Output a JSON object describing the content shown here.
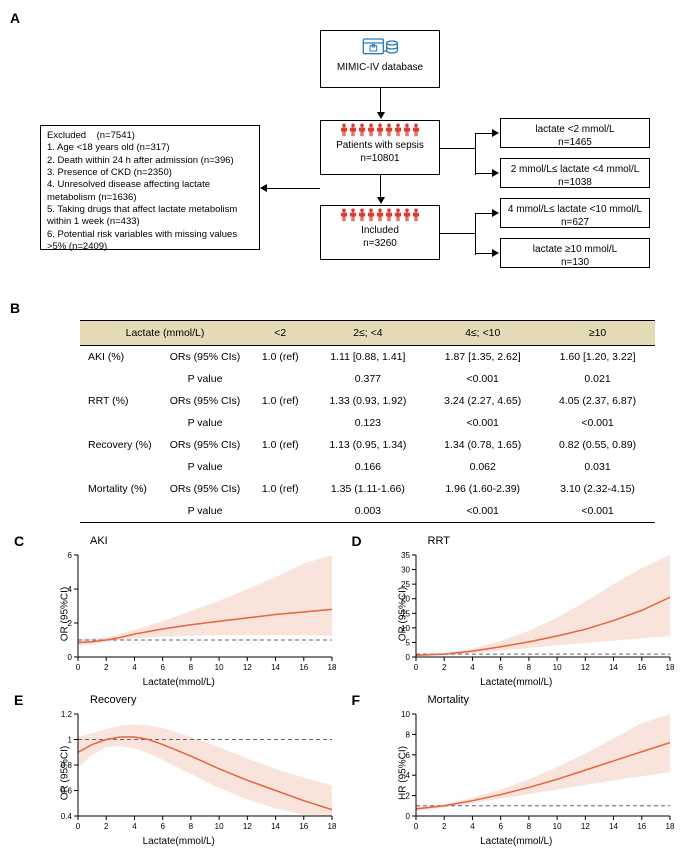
{
  "panelA": {
    "label": "A",
    "database_box": {
      "icon_color": "#2a7bbf",
      "label": "MIMIC-IV database"
    },
    "sepsis_box": {
      "title": "Patients with sepsis",
      "n": "n=10801",
      "people_color": "#d93a2f"
    },
    "included_box": {
      "title": "Included",
      "n": "n=3260",
      "people_color": "#d93a2f"
    },
    "excluded_box": {
      "header": "Excluded    (n=7541)",
      "items": [
        "1. Age <18 years old (n=317)",
        "2. Death within 24 h after admission (n=396)",
        "3. Presence of CKD (n=2350)",
        "4. Unresolved disease affecting lactate metabolism (n=1636)",
        "5. Taking drugs that affect lactate metabolism within 1 week (n=433)",
        "6. Potential risk variables with missing values >5% (n=2409)"
      ]
    },
    "groups": [
      {
        "label": "lactate <2 mmol/L",
        "n": "n=1465"
      },
      {
        "label": "2 mmol/L≤ lactate <4 mmol/L",
        "n": "n=1038"
      },
      {
        "label": "4 mmol/L≤ lactate <10 mmol/L",
        "n": "n=627"
      },
      {
        "label": "lactate ≥10 mmol/L",
        "n": "n=130"
      }
    ]
  },
  "panelB": {
    "label": "B",
    "header_bg": "#e5dbb6",
    "colhead": [
      "Lactate (mmol/L)",
      "<2",
      "2≤; <4",
      "4≤; <10",
      "≥10"
    ],
    "rows": [
      {
        "outcome": "AKI (%)",
        "metric": "ORs (95% CIs)",
        "c1": "1.0 (ref)",
        "c2": "1.11 [0.88, 1.41]",
        "c3": "1.87 [1.35, 2.62]",
        "c4": "1.60 [1.20, 3.22]"
      },
      {
        "outcome": "",
        "metric": "P value",
        "c1": "",
        "c2": "0.377",
        "c3": "<0.001",
        "c4": "0.021"
      },
      {
        "outcome": "RRT (%)",
        "metric": "ORs (95% CIs)",
        "c1": "1.0 (ref)",
        "c2": "1.33 (0.93, 1.92)",
        "c3": "3.24 (2.27, 4.65)",
        "c4": "4.05 (2.37, 6.87)"
      },
      {
        "outcome": "",
        "metric": "P value",
        "c1": "",
        "c2": "0.123",
        "c3": "<0.001",
        "c4": "<0.001"
      },
      {
        "outcome": "Recovery (%)",
        "metric": "ORs (95% CIs)",
        "c1": "1.0 (ref)",
        "c2": "1.13 (0.95, 1.34)",
        "c3": "1.34 (0.78, 1.65)",
        "c4": "0.82 (0.55, 0.89)"
      },
      {
        "outcome": "",
        "metric": "P value",
        "c1": "",
        "c2": "0.166",
        "c3": "0.062",
        "c4": "0.031"
      },
      {
        "outcome": "Mortality (%)",
        "metric": "ORs (95% CIs)",
        "c1": "1.0 (ref)",
        "c2": "1.35 (1.11-1.66)",
        "c3": "1.96 (1.60-2.39)",
        "c4": "3.10 (2.32-4.15)"
      },
      {
        "outcome": "",
        "metric": "P value",
        "c1": "",
        "c2": "0.003",
        "c3": "<0.001",
        "c4": "<0.001"
      }
    ]
  },
  "charts": {
    "common": {
      "line_color": "#e6633f",
      "band_color": "#f5d5c8",
      "band_opacity": 0.65,
      "ref_dash": "4,3",
      "ref_color": "#666666",
      "axis_color": "#000000",
      "xlabel": "Lactate(mmol/L)",
      "x_ticks": [
        0,
        2,
        4,
        6,
        8,
        10,
        12,
        14,
        16,
        18
      ],
      "xlim": [
        0,
        18
      ],
      "tick_fontsize": 8
    },
    "C": {
      "label": "C",
      "title": "AKI",
      "ylabel": "OR (95%CI)",
      "ylim": [
        0,
        6
      ],
      "y_ticks": [
        0,
        2,
        4,
        6
      ],
      "ref_y": 1,
      "line": [
        [
          0,
          0.85
        ],
        [
          1,
          0.9
        ],
        [
          2,
          1.0
        ],
        [
          3,
          1.15
        ],
        [
          4,
          1.35
        ],
        [
          5,
          1.5
        ],
        [
          6,
          1.65
        ],
        [
          8,
          1.9
        ],
        [
          10,
          2.1
        ],
        [
          12,
          2.3
        ],
        [
          14,
          2.5
        ],
        [
          16,
          2.65
        ],
        [
          18,
          2.8
        ]
      ],
      "lower": [
        [
          0,
          0.65
        ],
        [
          1,
          0.75
        ],
        [
          2,
          0.9
        ],
        [
          3,
          1.0
        ],
        [
          4,
          1.1
        ],
        [
          6,
          1.2
        ],
        [
          8,
          1.25
        ],
        [
          10,
          1.3
        ],
        [
          12,
          1.3
        ],
        [
          14,
          1.3
        ],
        [
          16,
          1.3
        ],
        [
          18,
          1.25
        ]
      ],
      "upper": [
        [
          0,
          1.05
        ],
        [
          1,
          1.1
        ],
        [
          2,
          1.15
        ],
        [
          3,
          1.35
        ],
        [
          4,
          1.6
        ],
        [
          6,
          2.1
        ],
        [
          8,
          2.7
        ],
        [
          10,
          3.3
        ],
        [
          12,
          4.0
        ],
        [
          14,
          4.7
        ],
        [
          16,
          5.5
        ],
        [
          18,
          6.0
        ]
      ]
    },
    "D": {
      "label": "D",
      "title": "RRT",
      "ylabel": "OR (95%CI)",
      "ylim": [
        0,
        35
      ],
      "y_ticks": [
        0,
        5,
        10,
        15,
        20,
        25,
        30,
        35
      ],
      "ref_y": 1,
      "line": [
        [
          0,
          0.6
        ],
        [
          2,
          1.0
        ],
        [
          4,
          2.0
        ],
        [
          6,
          3.5
        ],
        [
          8,
          5.2
        ],
        [
          10,
          7.2
        ],
        [
          12,
          9.5
        ],
        [
          14,
          12.5
        ],
        [
          16,
          16.0
        ],
        [
          18,
          20.5
        ]
      ],
      "lower": [
        [
          0,
          0.35
        ],
        [
          2,
          0.7
        ],
        [
          4,
          1.3
        ],
        [
          6,
          2.2
        ],
        [
          8,
          3.1
        ],
        [
          10,
          4.0
        ],
        [
          12,
          4.8
        ],
        [
          14,
          5.6
        ],
        [
          16,
          6.4
        ],
        [
          18,
          7.2
        ]
      ],
      "upper": [
        [
          0,
          0.9
        ],
        [
          2,
          1.3
        ],
        [
          4,
          2.8
        ],
        [
          6,
          5.5
        ],
        [
          8,
          9.0
        ],
        [
          10,
          13.5
        ],
        [
          12,
          19.0
        ],
        [
          14,
          25.0
        ],
        [
          16,
          30.5
        ],
        [
          18,
          35.0
        ]
      ]
    },
    "E": {
      "label": "E",
      "title": "Recovery",
      "ylabel": "OR (95%CI)",
      "ylim": [
        0.4,
        1.2
      ],
      "y_ticks": [
        0.4,
        0.6,
        0.8,
        1.0,
        1.2
      ],
      "ref_y": 1,
      "line": [
        [
          0,
          0.9
        ],
        [
          1,
          0.96
        ],
        [
          2,
          1.0
        ],
        [
          3,
          1.02
        ],
        [
          4,
          1.02
        ],
        [
          5,
          1.0
        ],
        [
          6,
          0.96
        ],
        [
          8,
          0.87
        ],
        [
          10,
          0.77
        ],
        [
          12,
          0.68
        ],
        [
          14,
          0.6
        ],
        [
          16,
          0.52
        ],
        [
          18,
          0.45
        ]
      ],
      "lower": [
        [
          0,
          0.78
        ],
        [
          1,
          0.88
        ],
        [
          2,
          0.94
        ],
        [
          3,
          0.95
        ],
        [
          4,
          0.93
        ],
        [
          5,
          0.89
        ],
        [
          6,
          0.84
        ],
        [
          8,
          0.73
        ],
        [
          10,
          0.62
        ],
        [
          12,
          0.53
        ],
        [
          14,
          0.46
        ],
        [
          16,
          0.41
        ],
        [
          18,
          0.4
        ]
      ],
      "upper": [
        [
          0,
          1.02
        ],
        [
          1,
          1.05
        ],
        [
          2,
          1.08
        ],
        [
          3,
          1.11
        ],
        [
          4,
          1.12
        ],
        [
          5,
          1.11
        ],
        [
          6,
          1.09
        ],
        [
          8,
          1.02
        ],
        [
          10,
          0.94
        ],
        [
          12,
          0.85
        ],
        [
          14,
          0.77
        ],
        [
          16,
          0.7
        ],
        [
          18,
          0.64
        ]
      ]
    },
    "F": {
      "label": "F",
      "title": "Mortality",
      "ylabel": "HR (95%CI)",
      "ylim": [
        0,
        10
      ],
      "y_ticks": [
        0,
        2,
        4,
        6,
        8,
        10
      ],
      "ref_y": 1,
      "line": [
        [
          0,
          0.7
        ],
        [
          2,
          1.0
        ],
        [
          4,
          1.5
        ],
        [
          6,
          2.1
        ],
        [
          8,
          2.8
        ],
        [
          10,
          3.6
        ],
        [
          12,
          4.5
        ],
        [
          14,
          5.4
        ],
        [
          16,
          6.3
        ],
        [
          18,
          7.2
        ]
      ],
      "lower": [
        [
          0,
          0.5
        ],
        [
          2,
          0.85
        ],
        [
          4,
          1.25
        ],
        [
          6,
          1.7
        ],
        [
          8,
          2.15
        ],
        [
          10,
          2.6
        ],
        [
          12,
          3.05
        ],
        [
          14,
          3.5
        ],
        [
          16,
          3.9
        ],
        [
          18,
          4.3
        ]
      ],
      "upper": [
        [
          0,
          0.9
        ],
        [
          2,
          1.15
        ],
        [
          4,
          1.8
        ],
        [
          6,
          2.6
        ],
        [
          8,
          3.6
        ],
        [
          10,
          4.8
        ],
        [
          12,
          6.1
        ],
        [
          14,
          7.6
        ],
        [
          16,
          9.1
        ],
        [
          18,
          10.0
        ]
      ]
    }
  }
}
